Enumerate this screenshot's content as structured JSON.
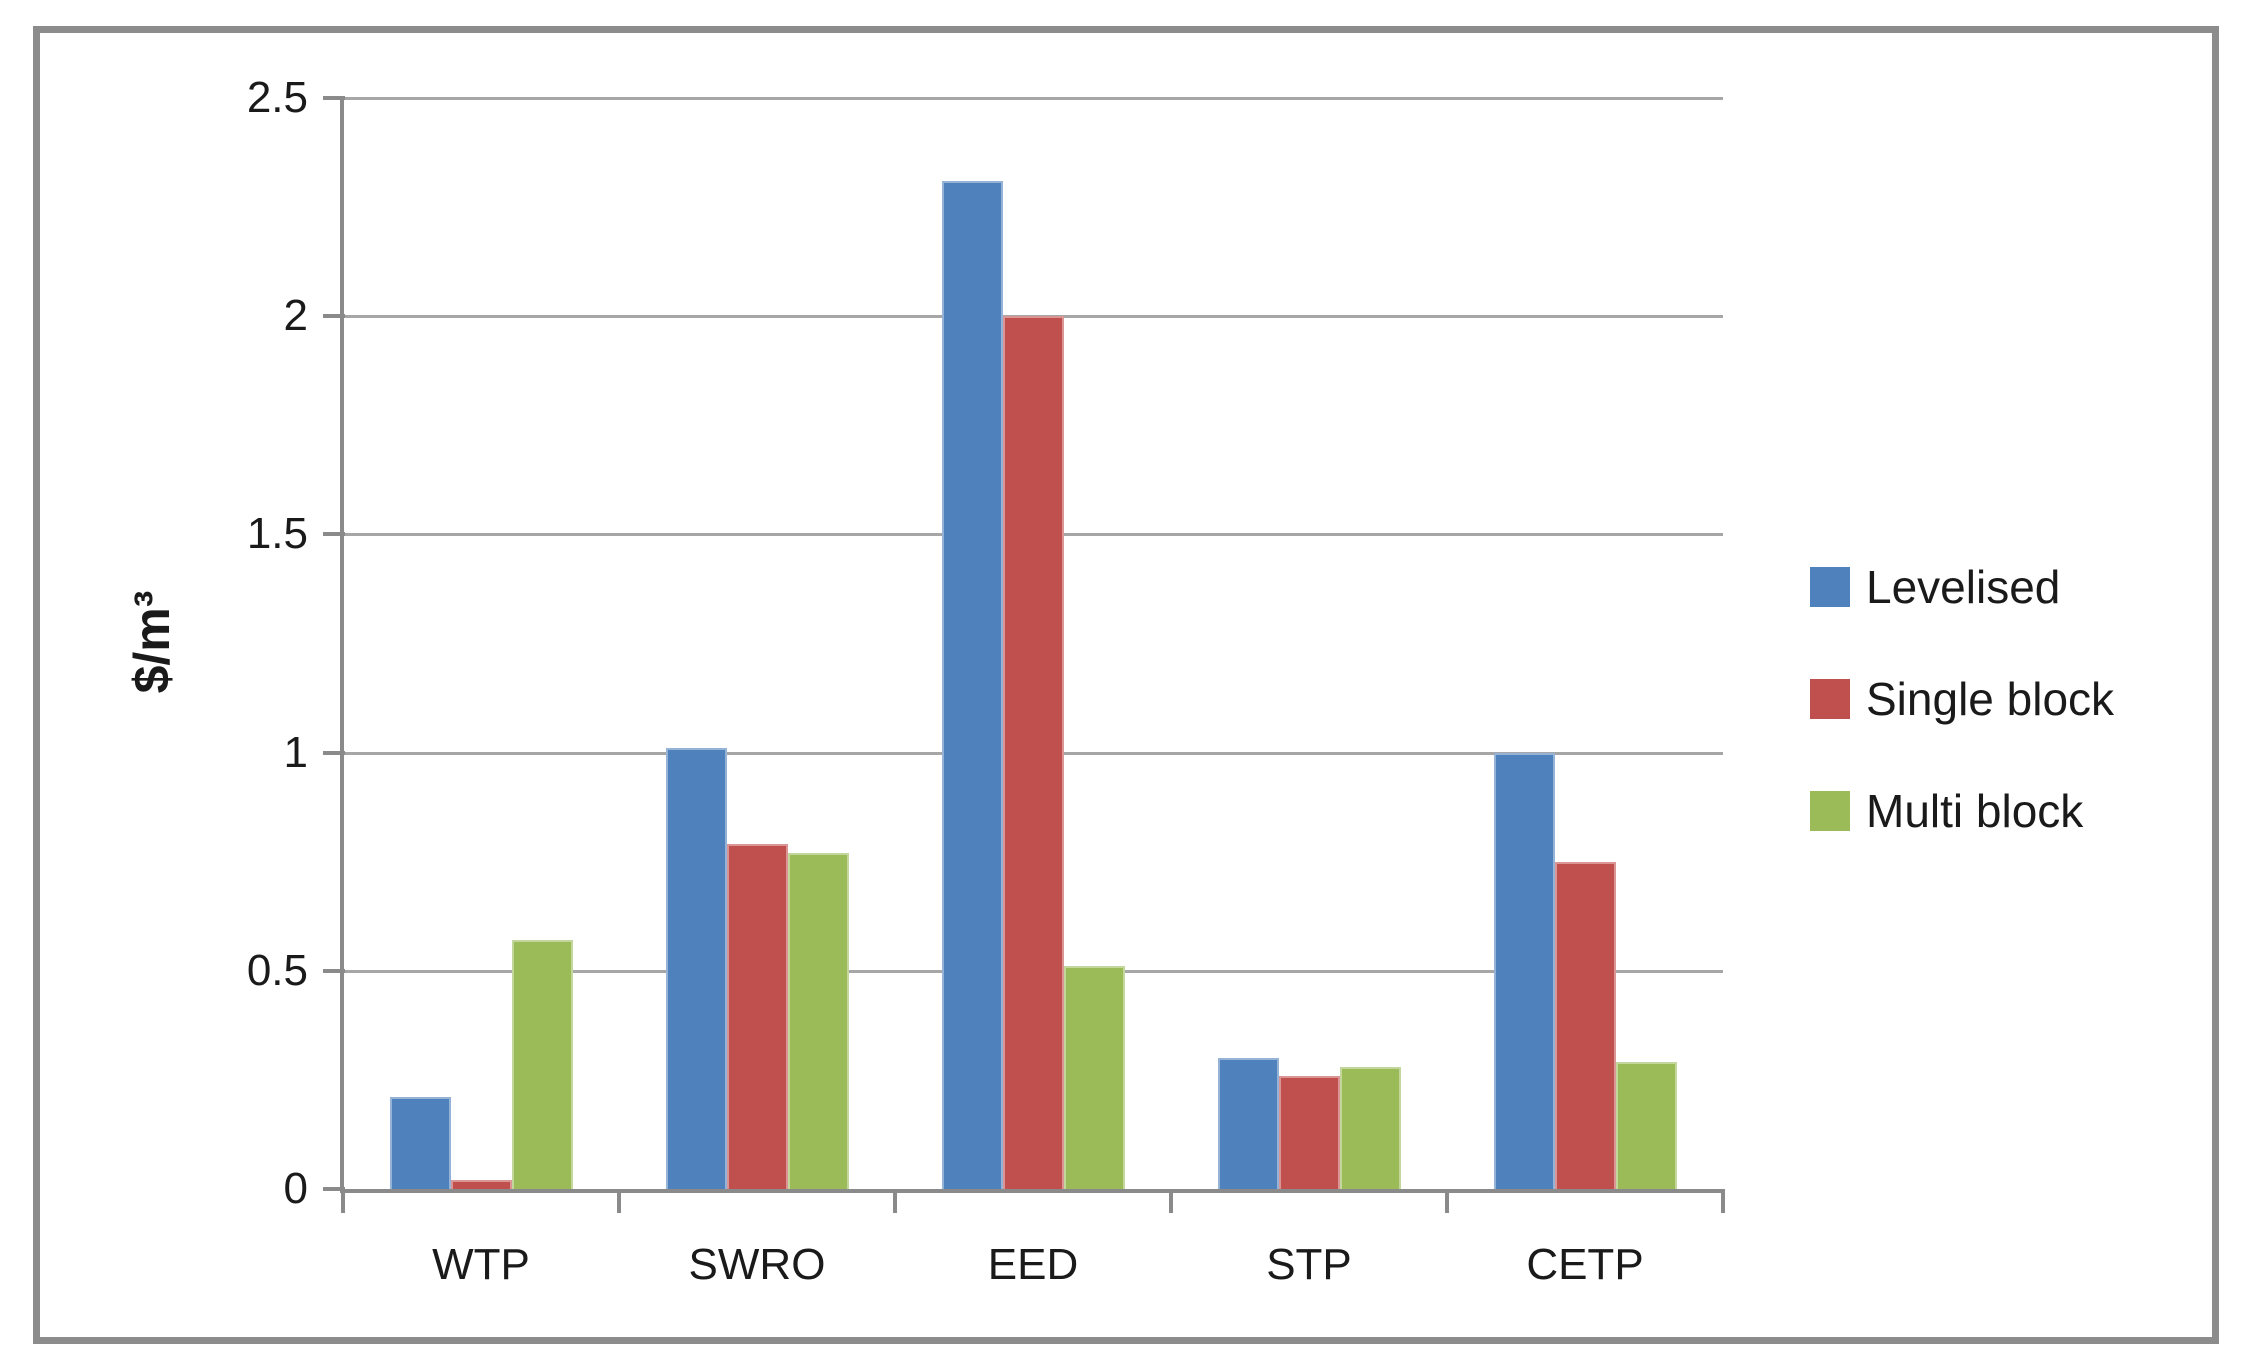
{
  "chart_data": {
    "type": "bar",
    "title": "",
    "categories": [
      "WTP",
      "SWRO",
      "EED",
      "STP",
      "CETP"
    ],
    "series": [
      {
        "name": "Levelised",
        "color": "#4F81BD",
        "edge_color": "#95B3D7",
        "values": [
          0.21,
          1.01,
          2.31,
          0.3,
          1.0
        ]
      },
      {
        "name": "Single block",
        "color": "#C0504D",
        "edge_color": "#D99694",
        "values": [
          0.02,
          0.79,
          2.0,
          0.26,
          0.75
        ]
      },
      {
        "name": "Multi block",
        "color": "#9BBB59",
        "edge_color": "#C3D69B",
        "values": [
          0.57,
          0.77,
          0.51,
          0.28,
          0.29
        ]
      }
    ],
    "xlabel": "",
    "ylabel": "$/m³",
    "ylim": [
      0,
      2.5
    ],
    "y_ticks": [
      0,
      0.5,
      1,
      1.5,
      2,
      2.5
    ],
    "y_tick_labels": [
      "0",
      "0.5",
      "1",
      "1.5",
      "2",
      "2.5"
    ],
    "grid": true,
    "legend_position": "right",
    "colors": {
      "gridline": "#A6A6A6",
      "axis": "#8A8A8A",
      "frame_border": "#8C8C8C",
      "text": "#1a1a1a",
      "background": "#ffffff"
    }
  }
}
